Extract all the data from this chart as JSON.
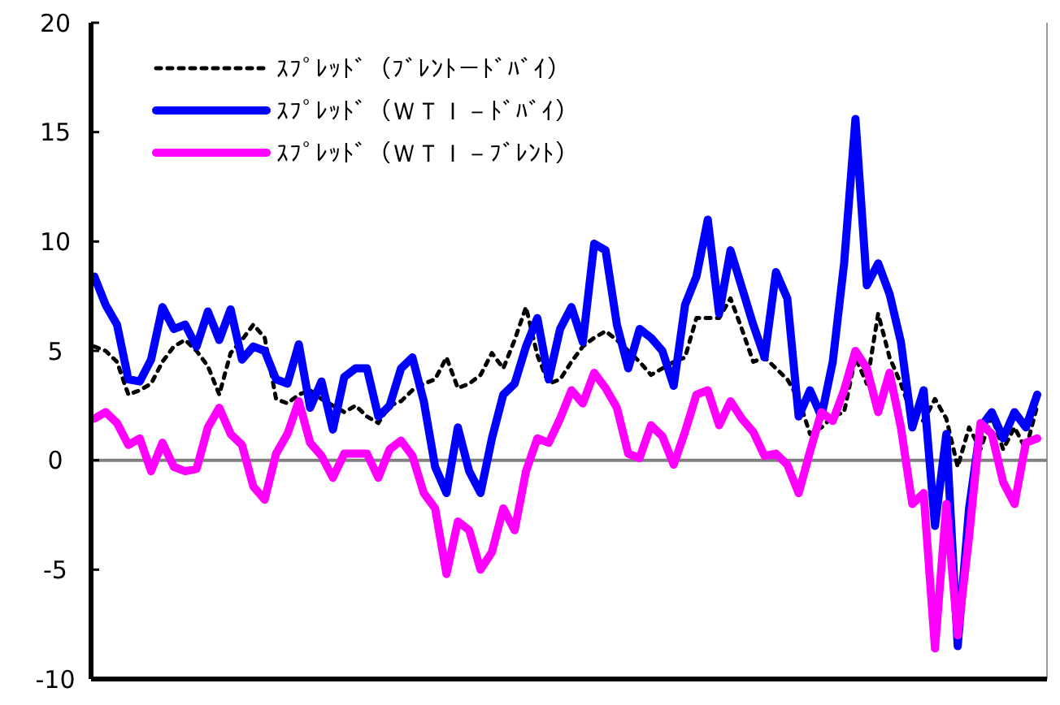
{
  "chart_data": {
    "type": "line",
    "categories": [
      null,
      null,
      null,
      null,
      null,
      null,
      null,
      null,
      null,
      null,
      null,
      null,
      null,
      null,
      null,
      null,
      null,
      null,
      null,
      null,
      null,
      null,
      null,
      null,
      null,
      null,
      null,
      null,
      null,
      null,
      null,
      null,
      null,
      null,
      null,
      null,
      null,
      null,
      null,
      null,
      null,
      null,
      null,
      null,
      null,
      null,
      null,
      null,
      null,
      null,
      null,
      null,
      null,
      null,
      null,
      null,
      null,
      null,
      null,
      null,
      null,
      null,
      null,
      null,
      null,
      null,
      null,
      null,
      null,
      null,
      null,
      null,
      null,
      null,
      null,
      null,
      null,
      null,
      null,
      null,
      null,
      null,
      null,
      null
    ],
    "ylim": [
      -10,
      20
    ],
    "yticks": [
      -10,
      -5,
      0,
      5,
      10,
      15,
      20
    ],
    "grid": false,
    "legend": "top left",
    "tick_labels": "y",
    "ref_lines": [
      {
        "axis": "y",
        "value": 0,
        "color": "#808080"
      }
    ],
    "series": [
      {
        "name": "ｽﾌﾟﾚｯﾄﾞ（ﾌﾞﾚﾝﾄ－ﾄﾞﾊﾞｲ）",
        "color": "#000000",
        "line_style": "dotted",
        "values": [
          5.2,
          5.0,
          4.5,
          3.0,
          3.2,
          3.5,
          4.5,
          5.2,
          5.5,
          5.0,
          4.3,
          3.0,
          4.9,
          5.5,
          6.2,
          5.6,
          2.8,
          2.6,
          3.0,
          3.2,
          2.8,
          2.5,
          2.2,
          2.5,
          2.0,
          1.7,
          2.5,
          2.7,
          3.2,
          3.5,
          3.7,
          4.7,
          3.3,
          3.5,
          3.9,
          4.9,
          4.2,
          5.5,
          7.0,
          4.8,
          3.5,
          3.7,
          4.5,
          5.2,
          5.6,
          5.9,
          5.5,
          5.0,
          4.5,
          3.9,
          4.2,
          4.5,
          4.7,
          6.5,
          6.5,
          6.5,
          7.4,
          6.0,
          4.5,
          4.7,
          4.2,
          3.7,
          2.8,
          1.2,
          1.5,
          2.0,
          2.2,
          4.7,
          3.5,
          6.7,
          4.7,
          3.5,
          2.0,
          1.8,
          2.8,
          1.9,
          -0.3,
          1.5,
          0.5,
          2.0,
          0.5,
          1.5,
          0.5,
          2.5
        ]
      },
      {
        "name": "ｽﾌﾟﾚｯﾄﾞ（ＷＴＩ－ﾄﾞﾊﾞｲ）",
        "color": "#0000ff",
        "line_style": "solid",
        "values": [
          8.4,
          7.1,
          6.2,
          3.7,
          3.6,
          4.6,
          7.0,
          6.0,
          6.2,
          5.2,
          6.8,
          5.5,
          6.9,
          4.6,
          5.2,
          5.0,
          3.7,
          3.5,
          5.3,
          2.4,
          3.6,
          1.4,
          3.8,
          4.2,
          4.2,
          2.0,
          2.5,
          4.2,
          4.7,
          2.7,
          -0.3,
          -1.5,
          1.5,
          -0.5,
          -1.5,
          1.0,
          3.0,
          3.5,
          5.2,
          6.5,
          3.7,
          6.0,
          7.0,
          5.4,
          9.9,
          9.6,
          6.2,
          4.2,
          6.0,
          5.6,
          5.0,
          3.4,
          7.1,
          8.4,
          11.0,
          6.7,
          9.6,
          7.9,
          6.2,
          4.7,
          8.6,
          7.4,
          2.0,
          3.2,
          2.0,
          4.5,
          9.0,
          15.6,
          8.0,
          9.0,
          7.6,
          5.4,
          1.5,
          3.2,
          -3.0,
          1.2,
          -8.5,
          -2.2,
          1.5,
          2.2,
          1.0,
          2.2,
          1.5,
          3.0
        ]
      },
      {
        "name": "ｽﾌﾟﾚｯﾄﾞ（ＷＴＩ－ﾌﾞﾚﾝﾄ）",
        "color": "#ff00ff",
        "line_style": "solid",
        "values": [
          1.9,
          2.2,
          1.7,
          0.7,
          1.0,
          -0.5,
          0.8,
          -0.3,
          -0.5,
          -0.4,
          1.5,
          2.4,
          1.2,
          0.7,
          -1.2,
          -1.8,
          0.3,
          1.2,
          2.7,
          0.8,
          0.2,
          -0.8,
          0.3,
          0.3,
          0.3,
          -0.8,
          0.5,
          0.9,
          0.2,
          -1.5,
          -2.2,
          -5.2,
          -2.8,
          -3.2,
          -5.0,
          -4.2,
          -2.2,
          -3.2,
          -0.5,
          1.0,
          0.8,
          1.9,
          3.2,
          2.6,
          4.0,
          3.3,
          2.4,
          0.3,
          0.1,
          1.6,
          1.1,
          -0.2,
          1.3,
          3.0,
          3.2,
          1.6,
          2.7,
          1.9,
          1.3,
          0.2,
          0.3,
          -0.2,
          -1.5,
          0.4,
          2.2,
          1.8,
          3.2,
          5.0,
          4.2,
          2.2,
          4.0,
          1.5,
          -2.0,
          -1.5,
          -8.6,
          -2.0,
          -8.0,
          -3.5,
          1.7,
          1.2,
          -1.0,
          -2.0,
          0.8,
          1.0
        ]
      }
    ]
  }
}
